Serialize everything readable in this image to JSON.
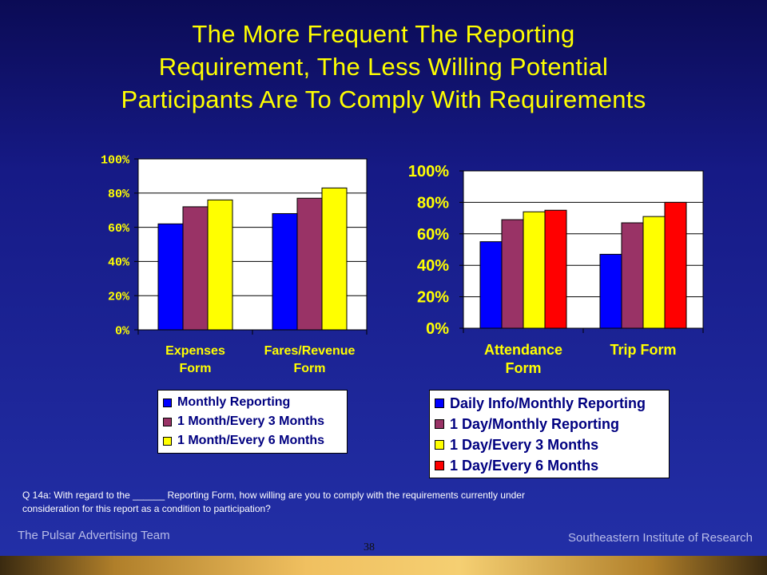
{
  "slide": {
    "title_lines": [
      "The More Frequent The Reporting",
      "Requirement, The Less Willing Potential",
      "Participants Are To Comply With Requirements"
    ],
    "question": "Q 14a:  With regard to the ______ Reporting Form, how willing are you to comply with the requirements currently under consideration for this report as a condition to participation?",
    "footer_left": "The Pulsar Advertising Team",
    "footer_right": "Southeastern Institute of Research",
    "page_number": "38"
  },
  "colors": {
    "blue": "#0000ff",
    "maroon": "#993366",
    "yellow": "#ffff00",
    "red": "#ff0000",
    "plot_bg": "#ffffff",
    "axis_text": "#ffff00"
  },
  "chart_data": [
    {
      "type": "bar",
      "categories": [
        [
          "Expenses",
          "Form"
        ],
        [
          "Fares/Revenue",
          "Form"
        ]
      ],
      "series": [
        {
          "name": "Monthly Reporting",
          "color": "#0000ff",
          "values": [
            62,
            68
          ]
        },
        {
          "name": "1 Month/Every 3 Months",
          "color": "#993366",
          "values": [
            72,
            77
          ]
        },
        {
          "name": "1 Month/Every 6 Months",
          "color": "#ffff00",
          "values": [
            76,
            83
          ]
        }
      ],
      "yticks": [
        "0%",
        "20%",
        "40%",
        "60%",
        "80%",
        "100%"
      ],
      "ylim": [
        0,
        100
      ],
      "grid": true,
      "legend": "bottom"
    },
    {
      "type": "bar",
      "categories": [
        [
          "Attendance",
          "Form"
        ],
        [
          "Trip Form"
        ]
      ],
      "series": [
        {
          "name": "Daily Info/Monthly Reporting",
          "color": "#0000ff",
          "values": [
            55,
            47
          ]
        },
        {
          "name": "1 Day/Monthly Reporting",
          "color": "#993366",
          "values": [
            69,
            67
          ]
        },
        {
          "name": "1 Day/Every 3 Months",
          "color": "#ffff00",
          "values": [
            74,
            71
          ]
        },
        {
          "name": "1 Day/Every 6 Months",
          "color": "#ff0000",
          "values": [
            75,
            80
          ]
        }
      ],
      "yticks": [
        "0%",
        "20%",
        "40%",
        "60%",
        "80%",
        "100%"
      ],
      "ylim": [
        0,
        100
      ],
      "grid": true,
      "legend": "bottom"
    }
  ]
}
